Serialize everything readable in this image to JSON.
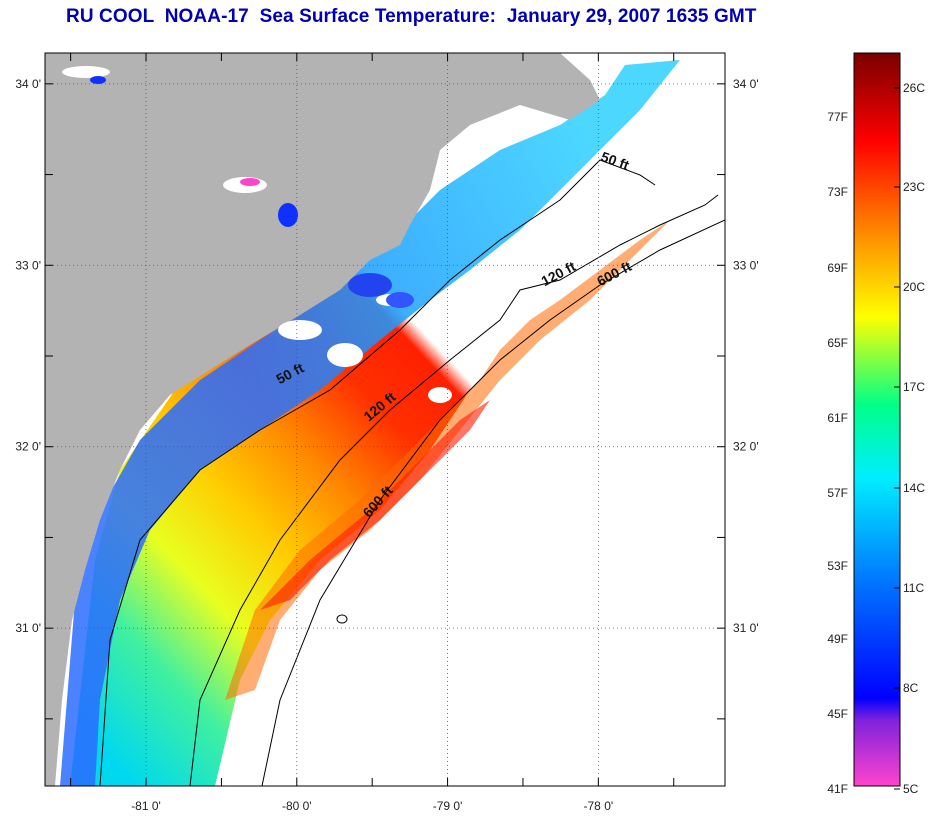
{
  "title": "RU COOL  NOAA-17  Sea Surface Temperature:  January 29, 2007 1635 GMT",
  "map": {
    "lat_range": [
      30.13,
      34.17
    ],
    "lon_range": [
      -81.67,
      -77.16
    ],
    "lat_ticks": [
      {
        "value": 34,
        "label": "34 0'"
      },
      {
        "value": 33.5,
        "label": ""
      },
      {
        "value": 33,
        "label": "33 0'"
      },
      {
        "value": 32.5,
        "label": ""
      },
      {
        "value": 32,
        "label": "32 0'"
      },
      {
        "value": 31.5,
        "label": ""
      },
      {
        "value": 31,
        "label": "31 0'"
      },
      {
        "value": 30.5,
        "label": ""
      }
    ],
    "lon_ticks": [
      {
        "value": -81.5,
        "label": ""
      },
      {
        "value": -81,
        "label": "-81 0'"
      },
      {
        "value": -80.5,
        "label": ""
      },
      {
        "value": -80,
        "label": "-80 0'"
      },
      {
        "value": -79.5,
        "label": ""
      },
      {
        "value": -79,
        "label": "-79 0'"
      },
      {
        "value": -78.5,
        "label": ""
      },
      {
        "value": -78,
        "label": "-78 0'"
      },
      {
        "value": -77.5,
        "label": ""
      }
    ],
    "contour_labels": [
      {
        "text": "50 ft",
        "lon": -77.9,
        "lat": 33.55,
        "angle": 20
      },
      {
        "text": "120 ft",
        "lon": -78.25,
        "lat": 32.93,
        "angle": -28
      },
      {
        "text": "600 ft",
        "lon": -77.88,
        "lat": 32.93,
        "angle": -28
      },
      {
        "text": "50 ft",
        "lon": -80.03,
        "lat": 32.38,
        "angle": -28
      },
      {
        "text": "120 ft",
        "lon": -79.43,
        "lat": 32.2,
        "angle": -40
      },
      {
        "text": "600 ft",
        "lon": -79.44,
        "lat": 31.68,
        "angle": -48
      }
    ],
    "colors": {
      "land": "#b3b3b3",
      "no_data": "#ffffff",
      "grid": "#555555",
      "contour": "#000000"
    }
  },
  "colorbar": {
    "fahrenheit_labels": [
      "77F",
      "73F",
      "69F",
      "65F",
      "61F",
      "57F",
      "53F",
      "49F",
      "45F",
      "41F"
    ],
    "celsius_labels": [
      "26C",
      "23C",
      "20C",
      "17C",
      "14C",
      "11C",
      "8C",
      "5C"
    ],
    "colors": [
      "#ff44cc",
      "#7f22dd",
      "#0000ff",
      "#0077ff",
      "#00eeff",
      "#00ff88",
      "#ffff00",
      "#ff9900",
      "#ff0000",
      "#7a0000"
    ]
  }
}
